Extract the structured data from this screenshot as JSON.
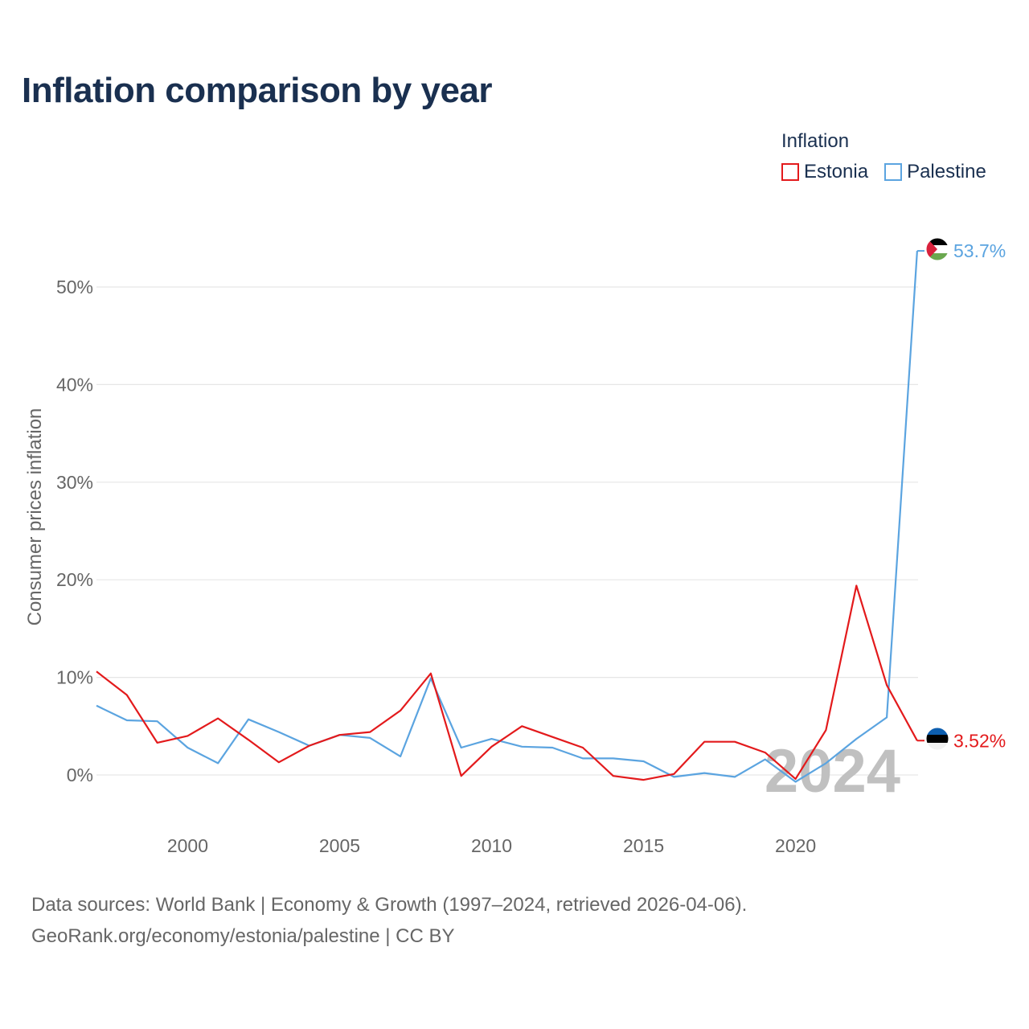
{
  "title": "Inflation comparison by year",
  "legend": {
    "title": "Inflation",
    "items": [
      {
        "name": "Estonia",
        "color": "#e31a1c"
      },
      {
        "name": "Palestine",
        "color": "#5ba4e0"
      }
    ]
  },
  "year_watermark": "2024",
  "footer": {
    "line1": "Data sources: World Bank | Economy & Growth (1997–2024, retrieved 2026-04-06).",
    "line2": "GeoRank.org/economy/estonia/palestine | CC BY"
  },
  "chart_data": {
    "type": "line",
    "title": "Inflation comparison by year",
    "xlabel": "",
    "ylabel": "Consumer prices inflation",
    "xlim": [
      1997,
      2024
    ],
    "ylim": [
      -4,
      56
    ],
    "x_ticks": [
      2000,
      2005,
      2010,
      2015,
      2020
    ],
    "x_tick_labels": [
      "2000",
      "2005",
      "2010",
      "2015",
      "2020"
    ],
    "y_ticks": [
      0,
      10,
      20,
      30,
      40,
      50
    ],
    "y_tick_labels": [
      "0%",
      "10%",
      "20%",
      "30%",
      "40%",
      "50%"
    ],
    "grid": true,
    "legend_position": "top-right",
    "x": [
      1997,
      1998,
      1999,
      2000,
      2001,
      2002,
      2003,
      2004,
      2005,
      2006,
      2007,
      2008,
      2009,
      2010,
      2011,
      2012,
      2013,
      2014,
      2015,
      2016,
      2017,
      2018,
      2019,
      2020,
      2021,
      2022,
      2023,
      2024
    ],
    "series": [
      {
        "name": "Estonia",
        "color": "#e31a1c",
        "values": [
          10.6,
          8.2,
          3.3,
          4.0,
          5.8,
          3.6,
          1.3,
          3.0,
          4.1,
          4.4,
          6.6,
          10.4,
          -0.1,
          2.9,
          5.0,
          3.9,
          2.8,
          -0.1,
          -0.5,
          0.1,
          3.4,
          3.4,
          2.3,
          -0.4,
          4.6,
          19.4,
          9.2,
          3.52
        ],
        "end_label": "3.52%",
        "flag": "estonia-flag"
      },
      {
        "name": "Palestine",
        "color": "#5ba4e0",
        "values": [
          7.1,
          5.6,
          5.5,
          2.8,
          1.2,
          5.7,
          4.4,
          3.0,
          4.1,
          3.8,
          1.9,
          9.9,
          2.8,
          3.7,
          2.9,
          2.8,
          1.7,
          1.7,
          1.4,
          -0.2,
          0.2,
          -0.2,
          1.6,
          -0.7,
          1.2,
          3.7,
          5.9,
          53.7
        ],
        "end_label": "53.7%",
        "flag": "palestine-flag"
      }
    ]
  }
}
